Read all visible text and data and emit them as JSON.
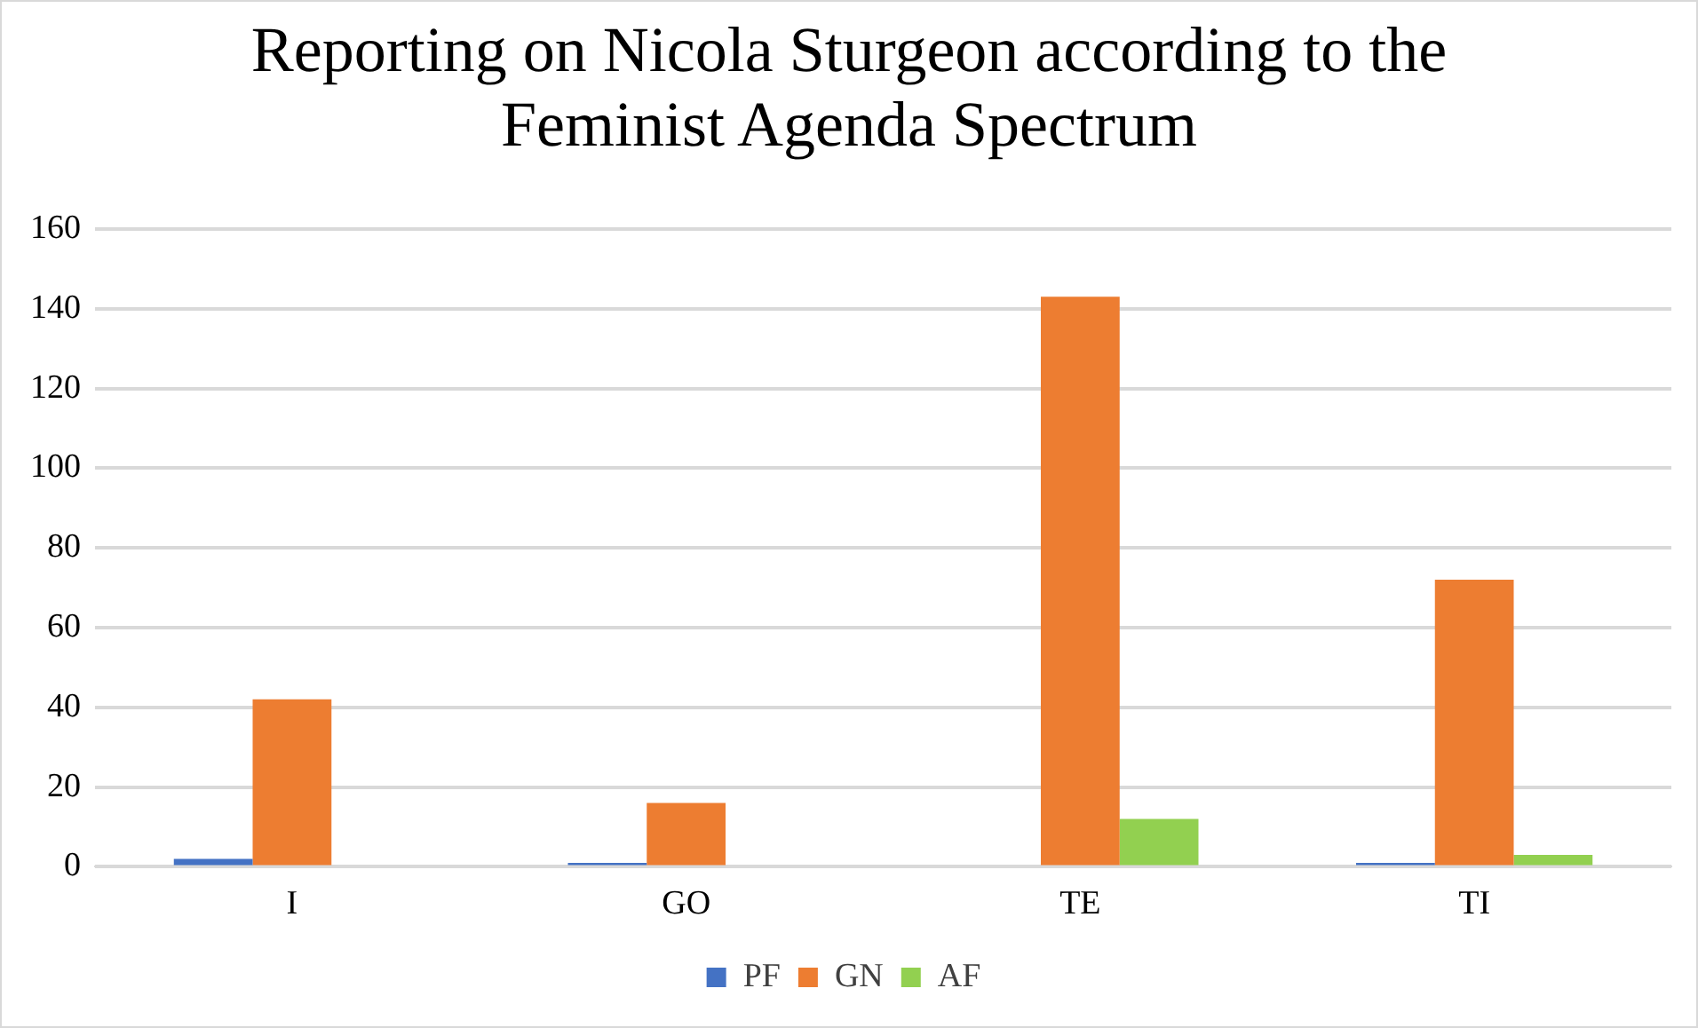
{
  "chart_data": {
    "type": "bar",
    "title": "Reporting on Nicola Sturgeon according to the Feminist Agenda Spectrum",
    "categories": [
      "I",
      "GO",
      "TE",
      "TI"
    ],
    "series": [
      {
        "name": "PF",
        "color": "#4472c4",
        "values": [
          2,
          1,
          0,
          1
        ]
      },
      {
        "name": "GN",
        "color": "#ed7d31",
        "values": [
          42,
          16,
          143,
          72
        ]
      },
      {
        "name": "AF",
        "color": "#92d050",
        "values": [
          0,
          0,
          12,
          3
        ]
      }
    ],
    "ylim": [
      0,
      160
    ],
    "yticks": [
      0,
      20,
      40,
      60,
      80,
      100,
      120,
      140,
      160
    ],
    "grid": "y",
    "legend": "bottom"
  }
}
